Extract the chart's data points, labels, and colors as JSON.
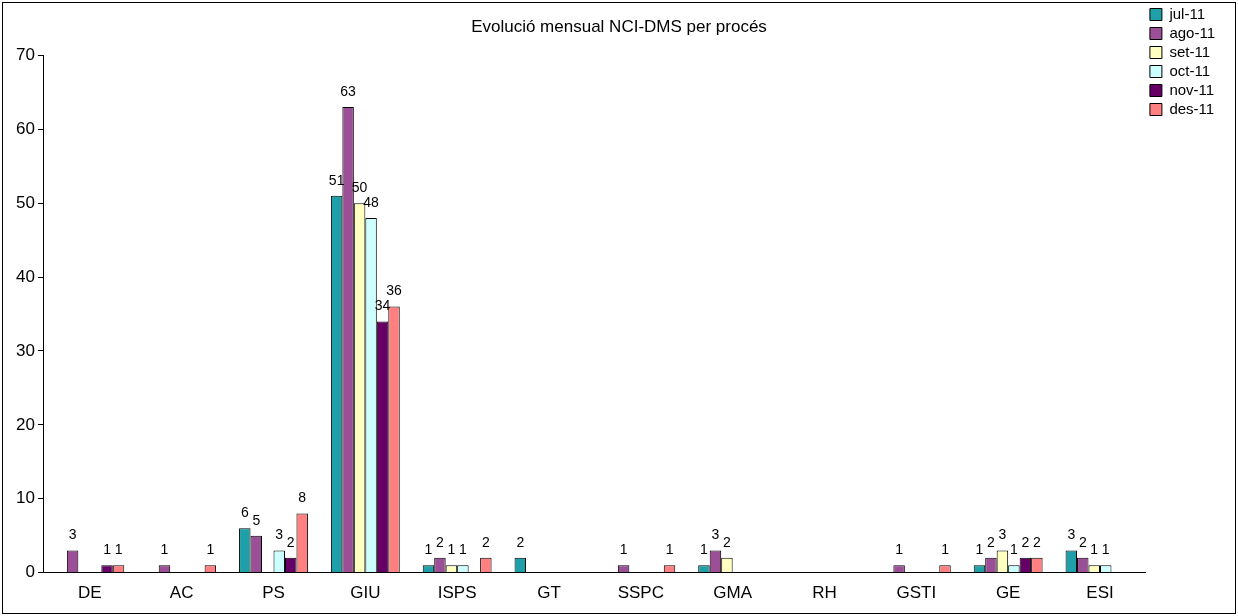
{
  "chart_data": {
    "type": "bar",
    "title": "Evolució mensual NCI-DMS per procés",
    "categories": [
      "DE",
      "AC",
      "PS",
      "GIU",
      "ISPS",
      "GT",
      "SSPC",
      "GMA",
      "RH",
      "GSTI",
      "GE",
      "ESI"
    ],
    "series": [
      {
        "name": "jul-11",
        "color": "#1fa0a8",
        "values": [
          null,
          null,
          6,
          51,
          1,
          2,
          null,
          1,
          null,
          null,
          1,
          3
        ]
      },
      {
        "name": "ago-11",
        "color": "#9b4f96",
        "values": [
          3,
          1,
          5,
          63,
          2,
          null,
          1,
          3,
          null,
          1,
          2,
          2
        ]
      },
      {
        "name": "set-11",
        "color": "#ffffc0",
        "values": [
          null,
          null,
          null,
          50,
          1,
          null,
          null,
          2,
          null,
          null,
          3,
          1
        ]
      },
      {
        "name": "oct-11",
        "color": "#ccffff",
        "values": [
          null,
          null,
          3,
          48,
          1,
          null,
          null,
          null,
          null,
          null,
          1,
          1
        ]
      },
      {
        "name": "nov-11",
        "color": "#660066",
        "values": [
          1,
          null,
          2,
          34,
          null,
          null,
          null,
          null,
          null,
          null,
          2,
          null
        ]
      },
      {
        "name": "des-11",
        "color": "#ff8080",
        "values": [
          1,
          1,
          8,
          36,
          2,
          null,
          1,
          null,
          null,
          1,
          2,
          null
        ]
      }
    ],
    "ylim": [
      0,
      70
    ],
    "yticks": [
      0,
      10,
      20,
      30,
      40,
      50,
      60,
      70
    ],
    "grid": false,
    "legend": "top right",
    "data_labels": true
  }
}
